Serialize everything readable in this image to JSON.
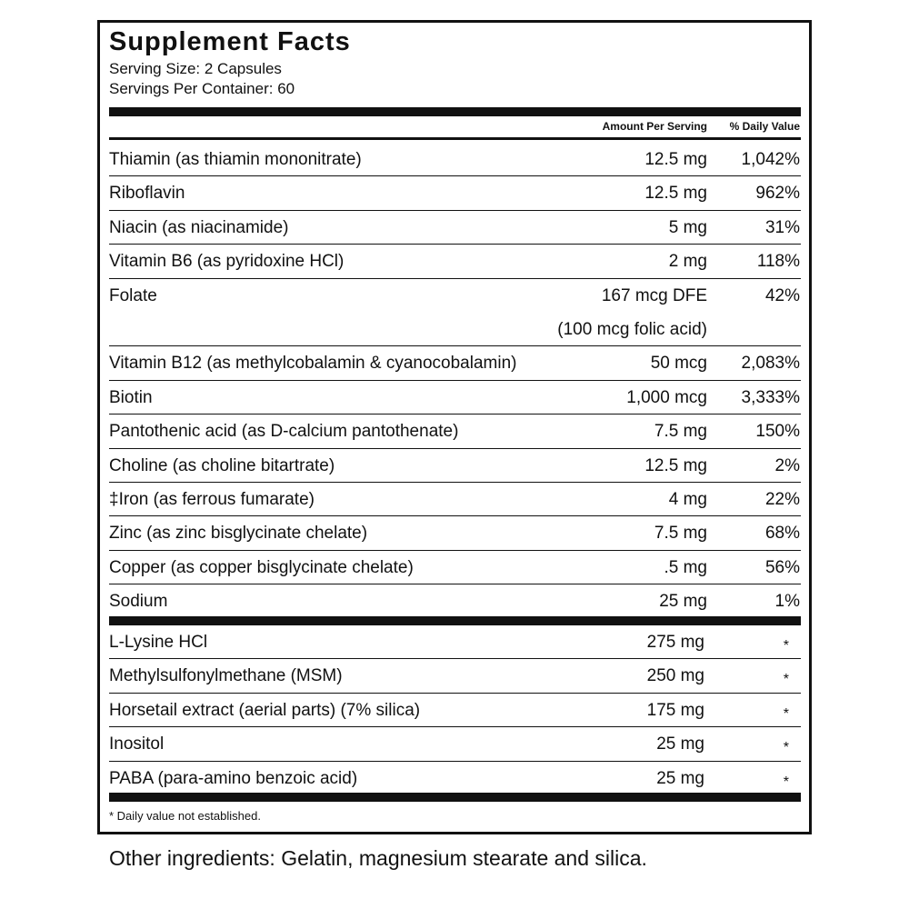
{
  "header": {
    "title": "Supplement Facts",
    "serving_size": "Serving Size: 2 Capsules",
    "servings_per_container": "Servings Per Container: 60"
  },
  "table": {
    "columns": [
      "Amount Per Serving",
      "% Daily Value"
    ],
    "rows": [
      {
        "name": "Thiamin (as thiamin mononitrate)",
        "amount": "12.5 mg",
        "dv": "1,042%"
      },
      {
        "name": "Riboflavin",
        "amount": "12.5 mg",
        "dv": "962%"
      },
      {
        "name": "Niacin (as niacinamide)",
        "amount": "5 mg",
        "dv": "31%"
      },
      {
        "name": "Vitamin B6 (as pyridoxine HCl)",
        "amount": "2 mg",
        "dv": "118%"
      },
      {
        "name": "Folate",
        "amount": "167 mcg DFE",
        "note": "(100 mcg folic acid)",
        "dv": "42%"
      },
      {
        "name": "Vitamin B12 (as methylcobalamin & cyanocobalamin)",
        "amount": "50 mcg",
        "dv": "2,083%"
      },
      {
        "name": "Biotin",
        "amount": "1,000 mcg",
        "dv": "3,333%"
      },
      {
        "name": "Pantothenic acid (as D-calcium pantothenate)",
        "amount": "7.5 mg",
        "dv": "150%"
      },
      {
        "name": "Choline (as choline bitartrate)",
        "amount": "12.5 mg",
        "dv": "2%"
      },
      {
        "name": "‡Iron (as ferrous fumarate)",
        "amount": "4 mg",
        "dv": "22%"
      },
      {
        "name": "Zinc (as zinc bisglycinate chelate)",
        "amount": "7.5 mg",
        "dv": "68%"
      },
      {
        "name": "Copper (as copper bisglycinate chelate)",
        "amount": ".5 mg",
        "dv": "56%"
      },
      {
        "name": "Sodium",
        "amount": "25 mg",
        "dv": "1%"
      }
    ],
    "other_rows": [
      {
        "name": "L-Lysine HCl",
        "amount": "275 mg",
        "dv": "*"
      },
      {
        "name": "Methylsulfonylmethane (MSM)",
        "amount": "250 mg",
        "dv": "*"
      },
      {
        "name": "Horsetail extract (aerial parts) (7% silica)",
        "amount": "175 mg",
        "dv": "*"
      },
      {
        "name": "Inositol",
        "amount": "25 mg",
        "dv": "*"
      },
      {
        "name": "PABA (para-amino benzoic acid)",
        "amount": "25 mg",
        "dv": "*"
      }
    ]
  },
  "footnote": "* Daily value not established.",
  "other_ingredients": "Other ingredients: Gelatin, magnesium stearate and silica."
}
